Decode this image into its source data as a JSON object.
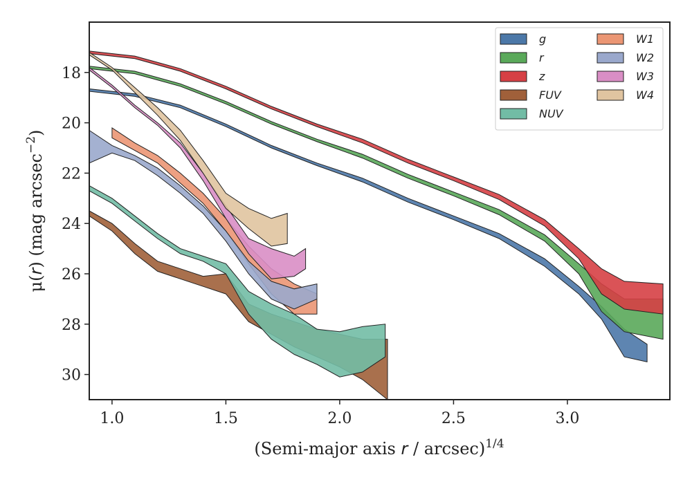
{
  "chart_data": {
    "type": "area",
    "xlabel_main": "(Semi-major axis ",
    "xlabel_var": "r",
    "xlabel_rest": " / arcsec)",
    "xlabel_exp": "1/4",
    "ylabel_main": "μ(",
    "ylabel_var": "r",
    "ylabel_rest": ") (mag arcsec",
    "ylabel_exp": "−2",
    "ylabel_close": ")",
    "xlim": [
      0.9,
      3.45
    ],
    "ylim": [
      31.0,
      16.0
    ],
    "y_inverted": true,
    "xticks": [
      1.0,
      1.5,
      2.0,
      2.5,
      3.0
    ],
    "xtick_labels": [
      "1.0",
      "1.5",
      "2.0",
      "2.5",
      "3.0"
    ],
    "yticks": [
      18,
      20,
      22,
      24,
      26,
      28,
      30
    ],
    "ytick_labels": [
      "18",
      "20",
      "22",
      "24",
      "26",
      "28",
      "30"
    ],
    "grid": false,
    "legend_placement": "top-right",
    "legend_columns": 2,
    "series": [
      {
        "name": "g",
        "color": "#4c78a8",
        "x": [
          0.9,
          1.1,
          1.3,
          1.5,
          1.7,
          1.9,
          2.1,
          2.3,
          2.5,
          2.7,
          2.9,
          3.05,
          3.15,
          3.25,
          3.35
        ],
        "y_low": [
          18.65,
          18.85,
          19.3,
          20.05,
          20.9,
          21.6,
          22.2,
          23.0,
          23.7,
          24.4,
          25.4,
          26.5,
          27.3,
          28.2,
          28.8
        ],
        "y_high": [
          18.75,
          18.95,
          19.4,
          20.15,
          21.0,
          21.7,
          22.35,
          23.15,
          23.85,
          24.6,
          25.7,
          26.8,
          27.8,
          29.3,
          29.5
        ]
      },
      {
        "name": "r",
        "color": "#5aa95a",
        "x": [
          0.9,
          1.1,
          1.3,
          1.5,
          1.7,
          1.9,
          2.1,
          2.3,
          2.5,
          2.7,
          2.9,
          3.05,
          3.15,
          3.25,
          3.42
        ],
        "y_low": [
          17.75,
          17.95,
          18.45,
          19.15,
          19.95,
          20.65,
          21.25,
          22.05,
          22.75,
          23.45,
          24.45,
          25.6,
          26.4,
          27.0,
          27.0
        ],
        "y_high": [
          17.85,
          18.05,
          18.55,
          19.25,
          20.05,
          20.75,
          21.4,
          22.2,
          22.9,
          23.65,
          24.7,
          26.0,
          27.5,
          28.3,
          28.6
        ]
      },
      {
        "name": "z",
        "color": "#d64045",
        "x": [
          0.9,
          1.1,
          1.3,
          1.5,
          1.7,
          1.9,
          2.1,
          2.3,
          2.5,
          2.7,
          2.9,
          3.05,
          3.15,
          3.25,
          3.42
        ],
        "y_low": [
          17.15,
          17.35,
          17.85,
          18.55,
          19.35,
          20.05,
          20.65,
          21.45,
          22.15,
          22.85,
          23.85,
          25.0,
          25.8,
          26.3,
          26.4
        ],
        "y_high": [
          17.25,
          17.45,
          17.95,
          18.65,
          19.45,
          20.15,
          20.8,
          21.6,
          22.3,
          23.05,
          24.1,
          25.4,
          26.8,
          27.4,
          27.6
        ]
      },
      {
        "name": "FUV",
        "color": "#a0603a",
        "x": [
          0.9,
          1.0,
          1.1,
          1.2,
          1.3,
          1.4,
          1.5,
          1.6,
          1.7,
          1.8,
          1.9,
          2.0,
          2.1,
          2.21
        ],
        "y_low": [
          23.5,
          24.0,
          24.8,
          25.5,
          25.8,
          26.1,
          26.0,
          27.2,
          27.6,
          27.9,
          28.2,
          28.4,
          28.6,
          28.6
        ],
        "y_high": [
          23.7,
          24.3,
          25.2,
          25.9,
          26.2,
          26.5,
          26.8,
          27.9,
          28.4,
          28.9,
          29.3,
          29.7,
          30.2,
          31.0
        ]
      },
      {
        "name": "NUV",
        "color": "#72bca5",
        "x": [
          0.9,
          1.0,
          1.1,
          1.2,
          1.3,
          1.4,
          1.5,
          1.6,
          1.7,
          1.8,
          1.9,
          2.0,
          2.1,
          2.2
        ],
        "y_low": [
          22.5,
          23.0,
          23.7,
          24.4,
          25.0,
          25.3,
          25.6,
          26.7,
          27.2,
          27.6,
          28.2,
          28.3,
          28.1,
          28.0
        ],
        "y_high": [
          22.7,
          23.2,
          23.9,
          24.6,
          25.2,
          25.5,
          26.0,
          27.6,
          28.6,
          29.2,
          29.6,
          30.1,
          29.9,
          29.3
        ]
      },
      {
        "name": "W1",
        "color": "#eb9674",
        "x": [
          1.0,
          1.1,
          1.2,
          1.3,
          1.4,
          1.5,
          1.6,
          1.7,
          1.8,
          1.9
        ],
        "y_low": [
          20.2,
          20.8,
          21.3,
          22.0,
          22.8,
          23.8,
          24.9,
          25.8,
          26.4,
          26.8
        ],
        "y_high": [
          20.6,
          21.1,
          21.6,
          22.4,
          23.2,
          24.3,
          25.6,
          26.8,
          27.6,
          27.6
        ]
      },
      {
        "name": "W2",
        "color": "#9aa8cc",
        "x": [
          0.9,
          1.0,
          1.1,
          1.2,
          1.3,
          1.4,
          1.5,
          1.6,
          1.7,
          1.8,
          1.9
        ],
        "y_low": [
          20.3,
          20.9,
          21.3,
          21.8,
          22.5,
          23.3,
          24.3,
          25.5,
          26.3,
          26.6,
          26.4
        ],
        "y_high": [
          21.6,
          21.2,
          21.5,
          22.1,
          22.8,
          23.6,
          24.7,
          26.0,
          27.0,
          27.4,
          27.0
        ]
      },
      {
        "name": "W3",
        "color": "#d98ec5",
        "x": [
          0.9,
          1.0,
          1.1,
          1.2,
          1.3,
          1.4,
          1.5,
          1.6,
          1.7,
          1.8,
          1.85
        ],
        "y_low": [
          17.8,
          18.5,
          19.3,
          20.0,
          20.8,
          22.0,
          23.3,
          24.6,
          25.0,
          25.3,
          25.0
        ],
        "y_high": [
          17.9,
          18.6,
          19.4,
          20.1,
          21.0,
          22.3,
          23.8,
          25.2,
          26.2,
          26.1,
          25.8
        ]
      },
      {
        "name": "W4",
        "color": "#e0c4a0",
        "x": [
          0.9,
          1.0,
          1.1,
          1.2,
          1.3,
          1.4,
          1.5,
          1.6,
          1.7,
          1.77
        ],
        "y_low": [
          17.2,
          17.8,
          18.6,
          19.4,
          20.3,
          21.5,
          22.8,
          23.4,
          23.8,
          23.6
        ],
        "y_high": [
          17.3,
          17.9,
          18.8,
          19.7,
          20.7,
          22.0,
          23.4,
          24.2,
          24.9,
          24.8
        ]
      }
    ]
  }
}
